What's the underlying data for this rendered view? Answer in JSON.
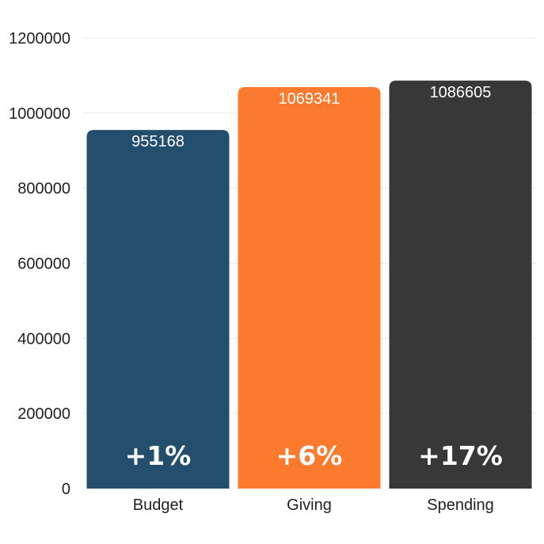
{
  "chart_data": {
    "type": "bar",
    "categories": [
      "Budget",
      "Giving",
      "Spending"
    ],
    "values": [
      955168,
      1069341,
      1086605
    ],
    "changes": [
      "+1%",
      "+6%",
      "+17%"
    ],
    "colors": [
      "#234e6e",
      "#fb7a2e",
      "#383838"
    ],
    "ylim": [
      0,
      1200000
    ],
    "yticks": [
      0,
      200000,
      400000,
      600000,
      800000,
      1000000,
      1200000
    ],
    "ytick_labels": [
      "0",
      "200000",
      "400000",
      "600000",
      "800000",
      "1000000",
      "1200000"
    ],
    "grid": true,
    "legend": "none",
    "data_labels": true
  }
}
